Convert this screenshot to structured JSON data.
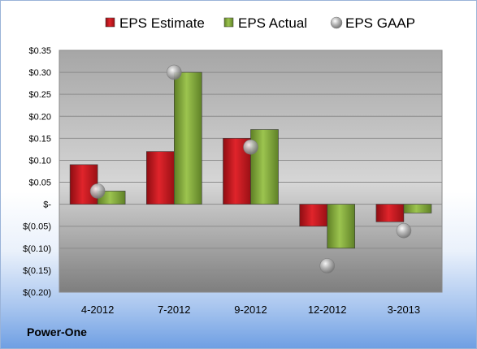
{
  "company": "Power-One",
  "chart_data": {
    "type": "bar",
    "categories": [
      "4-2012",
      "7-2012",
      "9-2012",
      "12-2012",
      "3-2013"
    ],
    "series": [
      {
        "name": "EPS Estimate",
        "kind": "bar",
        "color": "#c0141b",
        "values": [
          0.09,
          0.12,
          0.15,
          -0.05,
          -0.04
        ]
      },
      {
        "name": "EPS Actual",
        "kind": "bar",
        "color": "#7ea63a",
        "values": [
          0.03,
          0.3,
          0.17,
          -0.1,
          -0.02
        ]
      },
      {
        "name": "EPS GAAP",
        "kind": "marker",
        "color": "#a8a8a8",
        "values": [
          0.03,
          0.3,
          0.13,
          -0.14,
          -0.06
        ]
      }
    ],
    "ylim": [
      -0.2,
      0.35
    ],
    "yticks": [
      0.35,
      0.3,
      0.25,
      0.2,
      0.15,
      0.1,
      0.05,
      0,
      -0.05,
      -0.1,
      -0.15,
      -0.2
    ],
    "ytick_labels": [
      "$0.35",
      "$0.30",
      "$0.25",
      "$0.20",
      "$0.15",
      "$0.10",
      "$0.05",
      "$-",
      "$(0.05)",
      "$(0.10)",
      "$(0.15)",
      "$(0.20)"
    ],
    "legend_position": "top",
    "grid": true
  }
}
